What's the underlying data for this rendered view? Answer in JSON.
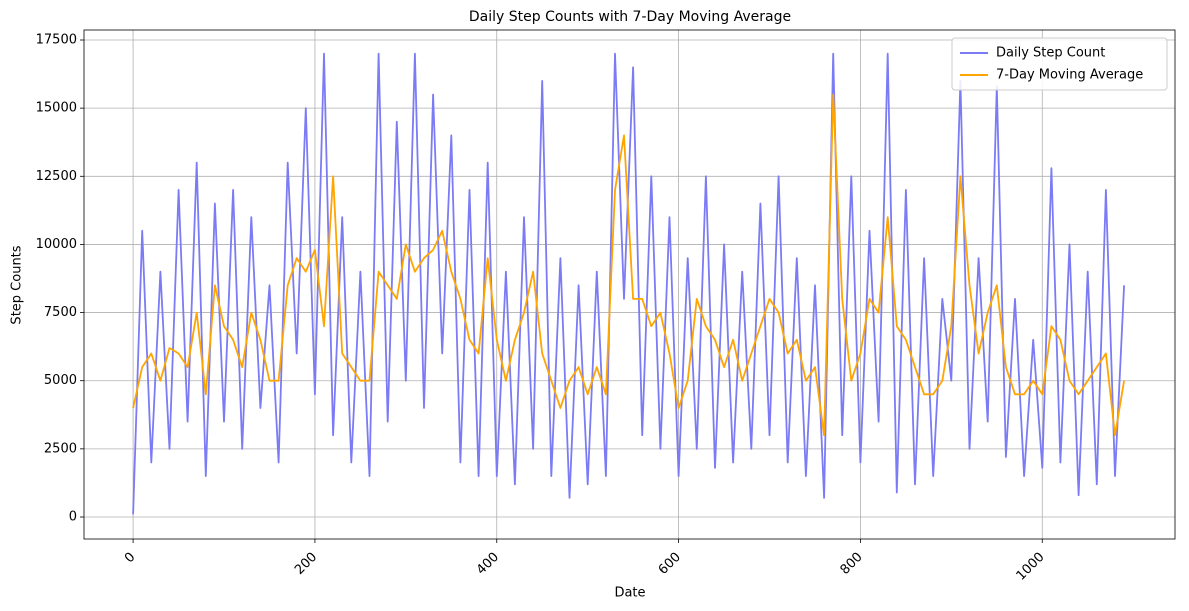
{
  "chart_data": {
    "type": "line",
    "title": "Daily Step Counts with 7-Day Moving Average",
    "x_label": "Date",
    "y_label": "Step Counts",
    "x": [
      0,
      10,
      20,
      30,
      40,
      50,
      60,
      70,
      80,
      90,
      100,
      110,
      120,
      130,
      140,
      150,
      160,
      170,
      180,
      190,
      200,
      210,
      220,
      230,
      240,
      250,
      260,
      270,
      280,
      290,
      300,
      310,
      320,
      330,
      340,
      350,
      360,
      370,
      380,
      390,
      400,
      410,
      420,
      430,
      440,
      450,
      460,
      470,
      480,
      490,
      500,
      510,
      520,
      530,
      540,
      550,
      560,
      570,
      580,
      590,
      600,
      610,
      620,
      630,
      640,
      650,
      660,
      670,
      680,
      690,
      700,
      710,
      720,
      730,
      740,
      750,
      760,
      770,
      780,
      790,
      800,
      810,
      820,
      830,
      840,
      850,
      860,
      870,
      880,
      890,
      900,
      910,
      920,
      930,
      940,
      950,
      960,
      970,
      980,
      990,
      1000,
      1010,
      1020,
      1030,
      1040,
      1050,
      1060,
      1070,
      1080,
      1090
    ],
    "series": [
      {
        "name": "Daily Step Count",
        "color": "#7b7bf5",
        "values": [
          100,
          10500,
          2000,
          9000,
          2500,
          12000,
          3500,
          13000,
          1500,
          11500,
          3500,
          12000,
          2500,
          11000,
          4000,
          8500,
          2000,
          13000,
          6000,
          15000,
          4500,
          17000,
          3000,
          11000,
          2000,
          9000,
          1500,
          17000,
          3500,
          14500,
          5000,
          17000,
          4000,
          15500,
          6000,
          14000,
          2000,
          12000,
          1500,
          13000,
          1500,
          9000,
          1200,
          11000,
          2500,
          16000,
          1500,
          9500,
          700,
          8500,
          1200,
          9000,
          1500,
          17000,
          8000,
          16500,
          3000,
          12500,
          2500,
          11000,
          1500,
          9500,
          2500,
          12500,
          1800,
          10000,
          2000,
          9000,
          2500,
          11500,
          3000,
          12500,
          2000,
          9500,
          1500,
          8500,
          700,
          17000,
          3000,
          12500,
          2000,
          10500,
          3500,
          17000,
          900,
          12000,
          1200,
          9500,
          1500,
          8000,
          5000,
          16000,
          2500,
          9500,
          3500,
          15800,
          2200,
          8000,
          1500,
          6500,
          1800,
          12800,
          2000,
          10000,
          800,
          9000,
          1200,
          12000,
          1500,
          8500
        ]
      },
      {
        "name": "7-Day Moving Average",
        "color": "#ffa500",
        "values": [
          4000,
          5500,
          6000,
          5000,
          6200,
          6000,
          5500,
          7500,
          4500,
          8500,
          7000,
          6500,
          5500,
          7500,
          6500,
          5000,
          5000,
          8500,
          9500,
          9000,
          9800,
          7000,
          12500,
          6000,
          5500,
          5000,
          5000,
          9000,
          8500,
          8000,
          10000,
          9000,
          9500,
          9800,
          10500,
          9000,
          8000,
          6500,
          6000,
          9500,
          6500,
          5000,
          6500,
          7500,
          9000,
          6000,
          5000,
          4000,
          5000,
          5500,
          4500,
          5500,
          4500,
          12000,
          14000,
          8000,
          8000,
          7000,
          7500,
          6000,
          4000,
          5000,
          8000,
          7000,
          6500,
          5500,
          6500,
          5000,
          6000,
          7000,
          8000,
          7500,
          6000,
          6500,
          5000,
          5500,
          3000,
          15500,
          8000,
          5000,
          6000,
          8000,
          7500,
          11000,
          7000,
          6500,
          5500,
          4500,
          4500,
          5000,
          7000,
          12500,
          8500,
          6000,
          7500,
          8500,
          5500,
          4500,
          4500,
          5000,
          4500,
          7000,
          6500,
          5000,
          4500,
          5000,
          5500,
          6000,
          3000,
          5000
        ]
      }
    ],
    "xlim": [
      -54,
      1146
    ],
    "ylim": [
      -807,
      17867
    ],
    "xticks": [
      0,
      200,
      400,
      600,
      800,
      1000
    ],
    "yticks": [
      0,
      2500,
      5000,
      7500,
      10000,
      12500,
      15000,
      17500
    ],
    "grid": true,
    "legend": "upper right"
  }
}
